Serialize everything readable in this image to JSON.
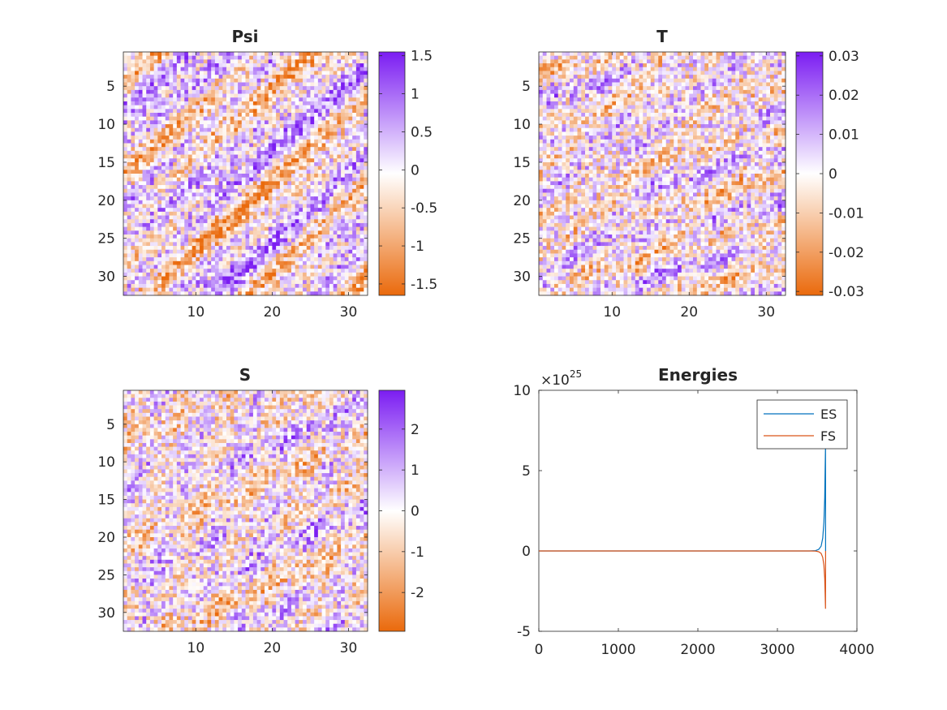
{
  "figure": {
    "background": "#ffffff",
    "colormap": {
      "negative": "#ea6a0c",
      "zero": "#ffffff",
      "positive": "#7b1df2"
    }
  },
  "chart_data": [
    {
      "type": "heatmap",
      "title": "Psi",
      "grid": "32x32 cells",
      "xticks": [
        10,
        20,
        30
      ],
      "yticks": [
        5,
        10,
        15,
        20,
        25,
        30
      ],
      "xlim": [
        0.5,
        32.5
      ],
      "ylim": [
        0.5,
        32.5
      ],
      "colorbar": {
        "range": [
          -1.65,
          1.55
        ],
        "ticks": [
          -1.5,
          -1,
          -0.5,
          0,
          0.5,
          1,
          1.5
        ]
      }
    },
    {
      "type": "heatmap",
      "title": "T",
      "grid": "32x32 cells",
      "xticks": [
        10,
        20,
        30
      ],
      "yticks": [
        5,
        10,
        15,
        20,
        25,
        30
      ],
      "xlim": [
        0.5,
        32.5
      ],
      "ylim": [
        0.5,
        32.5
      ],
      "colorbar": {
        "range": [
          -0.031,
          0.031
        ],
        "ticks": [
          -0.03,
          -0.02,
          -0.01,
          0,
          0.01,
          0.02,
          0.03
        ]
      }
    },
    {
      "type": "heatmap",
      "title": "S",
      "grid": "32x32 cells",
      "xticks": [
        10,
        20,
        30
      ],
      "yticks": [
        5,
        10,
        15,
        20,
        25,
        30
      ],
      "xlim": [
        0.5,
        32.5
      ],
      "ylim": [
        0.5,
        32.5
      ],
      "colorbar": {
        "range": [
          -2.95,
          2.95
        ],
        "ticks": [
          -2,
          -1,
          0,
          1,
          2
        ]
      }
    },
    {
      "type": "line",
      "title": "Energies",
      "exponent_label": "×10",
      "exponent_power": "25",
      "xlim": [
        0,
        4000
      ],
      "ylim": [
        -5,
        10
      ],
      "xticks": [
        0,
        1000,
        2000,
        3000,
        4000
      ],
      "yticks": [
        -5,
        0,
        5,
        10
      ],
      "legend": "top-right",
      "series": [
        {
          "name": "ES",
          "color": "#0072bd",
          "x": [
            0,
            3400,
            3480,
            3520,
            3550,
            3570,
            3585,
            3595,
            3600,
            3605,
            3606
          ],
          "y": [
            0,
            0,
            0.02,
            0.1,
            0.3,
            0.8,
            1.8,
            3.3,
            5.0,
            6.5,
            0
          ]
        },
        {
          "name": "FS",
          "color": "#d95319",
          "x": [
            0,
            3400,
            3480,
            3520,
            3550,
            3570,
            3585,
            3595,
            3600,
            3605,
            3606
          ],
          "y": [
            0,
            0,
            -0.01,
            -0.05,
            -0.15,
            -0.4,
            -0.9,
            -1.7,
            -2.6,
            -3.6,
            0
          ]
        }
      ]
    }
  ]
}
